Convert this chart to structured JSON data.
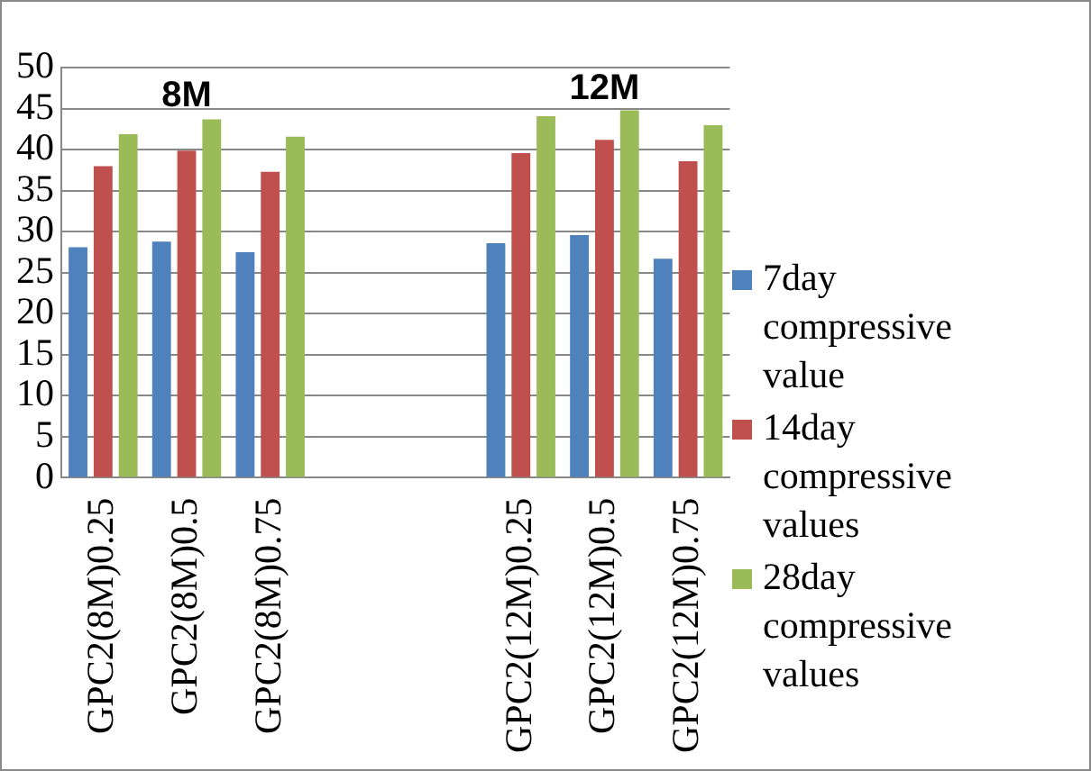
{
  "chart_data": {
    "type": "bar",
    "categories": [
      "GPC2(8M)0.25",
      "GPC2(8M)0.5",
      "GPC2(8M)0.75",
      null,
      null,
      "GPC2(12M)0.25",
      "GPC2(12M)0.5",
      "GPC2(12M)0.75"
    ],
    "series": [
      {
        "name": "7day compressive value",
        "color": "#4f81bd",
        "values": [
          28.1,
          28.8,
          27.5,
          null,
          null,
          28.6,
          29.6,
          26.7
        ]
      },
      {
        "name": "14day compressive values",
        "color": "#c0504d",
        "values": [
          38.0,
          39.9,
          37.3,
          null,
          null,
          39.6,
          41.2,
          38.6
        ]
      },
      {
        "name": "28day compressive values",
        "color": "#9bbb59",
        "values": [
          41.9,
          43.7,
          41.6,
          null,
          null,
          44.1,
          44.8,
          43.0
        ]
      }
    ],
    "ylim": [
      0,
      50
    ],
    "yticks": [
      0,
      5,
      10,
      15,
      20,
      25,
      30,
      35,
      40,
      45,
      50
    ],
    "grid": "y",
    "legend": "right",
    "annotations": [
      "8M",
      "12M"
    ]
  }
}
